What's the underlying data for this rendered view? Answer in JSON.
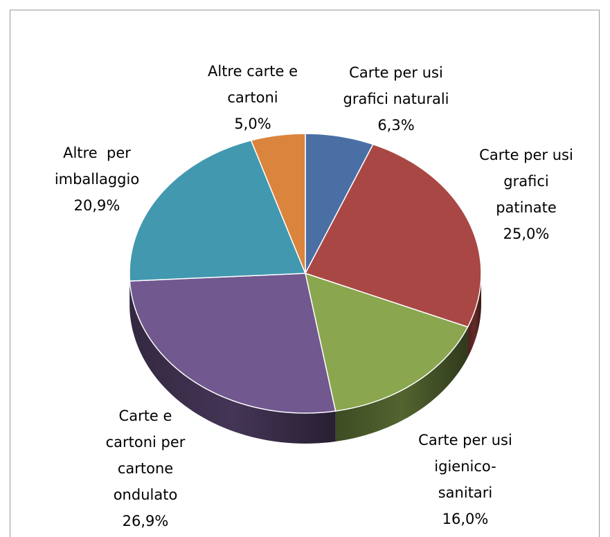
{
  "chart_data": {
    "type": "pie",
    "categories": [
      "Carte per usi\ngrafici naturali",
      "Carte per usi\ngrafici\npatinate",
      "Carte per usi\nigienico-\nsanitari",
      "Carte e\ncartoni per\ncartone\nondulato",
      "Altre  per\nimballaggio",
      "Altre carte e\ncartoni"
    ],
    "values": [
      6.3,
      25.0,
      16.0,
      26.9,
      20.9,
      5.0
    ],
    "value_labels": [
      "6,3%",
      "25,0%",
      "16,0%",
      "26,9%",
      "20,9%",
      "5,0%"
    ],
    "colors": [
      "#4a6fa5",
      "#a94744",
      "#8aa64f",
      "#71588f",
      "#4198af",
      "#db843d"
    ]
  }
}
